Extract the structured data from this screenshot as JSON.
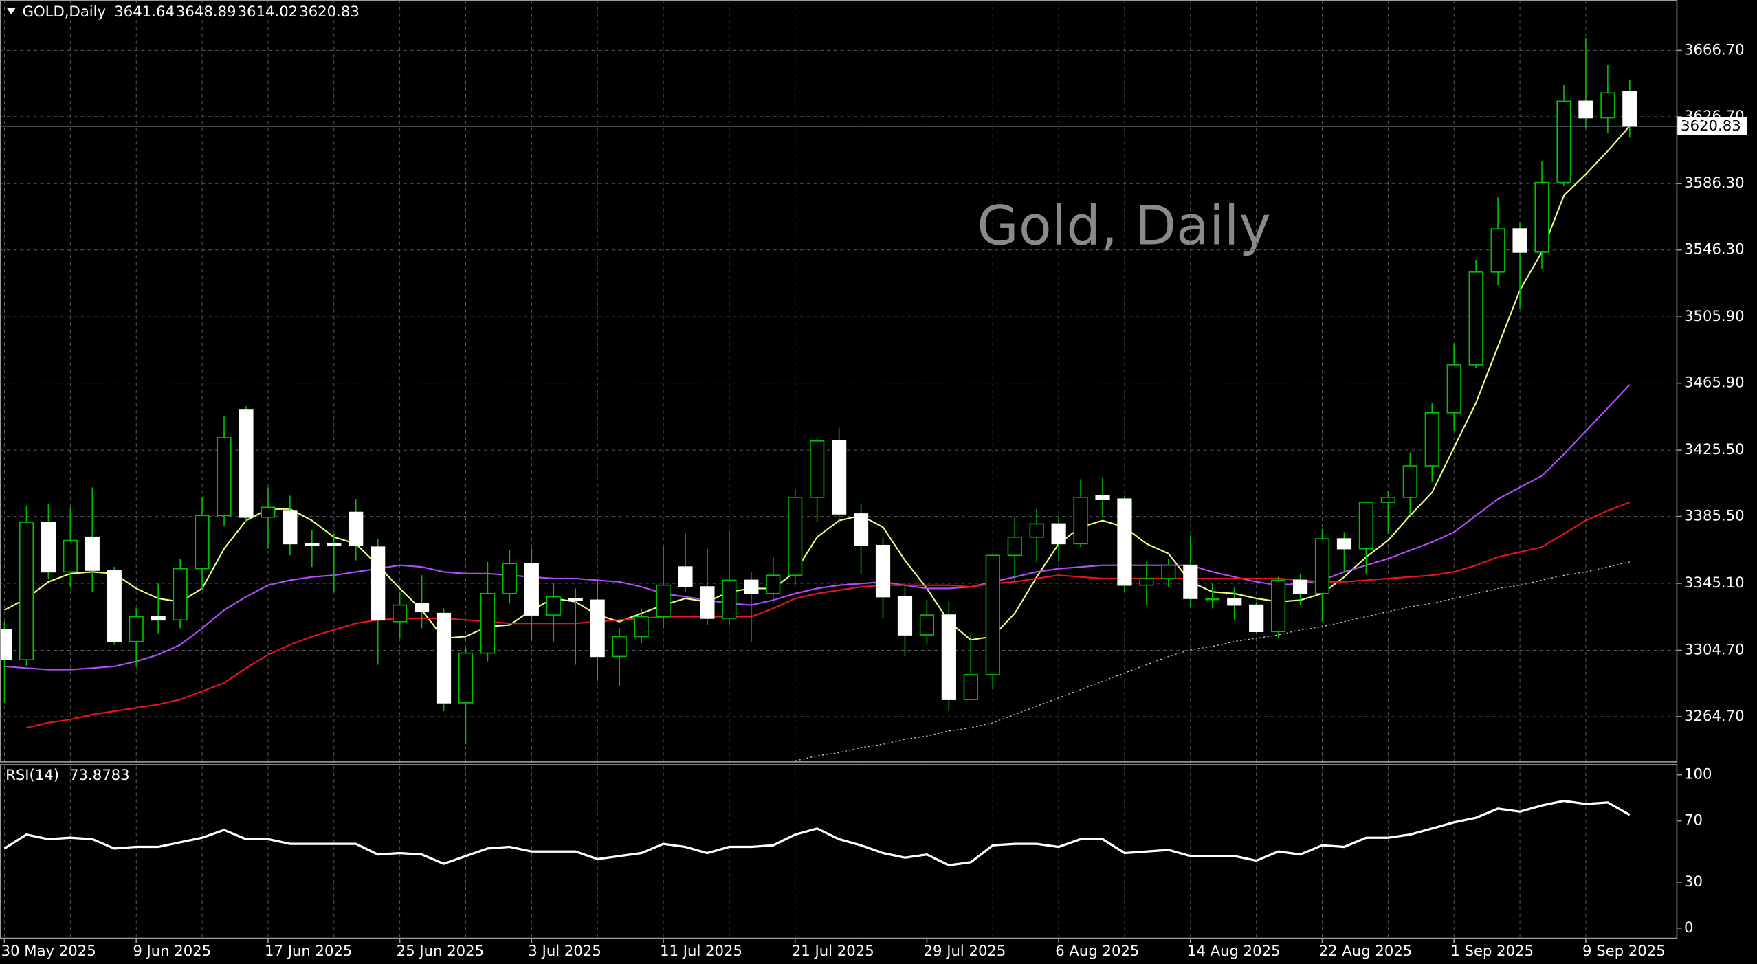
{
  "chart_data": [
    {
      "type": "candlestick",
      "title": "Gold, Daily",
      "symbol": "GOLD,Daily",
      "categories": [
        "30 May 2025",
        null,
        null,
        null,
        null,
        null,
        "9 Jun 2025",
        null,
        null,
        null,
        null,
        null,
        "17 Jun 2025",
        null,
        null,
        null,
        null,
        null,
        "25 Jun 2025",
        null,
        null,
        null,
        null,
        null,
        "3 Jul 2025",
        null,
        null,
        null,
        null,
        null,
        "11 Jul 2025",
        null,
        null,
        null,
        null,
        null,
        "21 Jul 2025",
        null,
        null,
        null,
        null,
        null,
        "29 Jul 2025",
        null,
        null,
        null,
        null,
        null,
        "6 Aug 2025",
        null,
        null,
        null,
        null,
        null,
        "14 Aug 2025",
        null,
        null,
        null,
        null,
        null,
        "22 Aug 2025",
        null,
        null,
        null,
        null,
        null,
        "1 Sep 2025",
        null,
        null,
        null,
        null,
        null,
        "9 Sep 2025",
        null,
        null
      ],
      "open": [
        3317,
        3299,
        3382,
        3352,
        3373,
        3353,
        3310,
        3325,
        3323,
        3354,
        3386,
        3450,
        3385,
        3389,
        3369,
        3369,
        3388,
        3367,
        3322,
        3333,
        3327,
        3273,
        3303,
        3339,
        3357,
        3326,
        3336,
        3335,
        3301,
        3313,
        3325,
        3355,
        3343,
        3324,
        3347,
        3339,
        3350,
        3397,
        3431,
        3387,
        3368,
        3337,
        3314,
        3326,
        3275,
        3290,
        3362,
        3373,
        3381,
        3369,
        3398,
        3396,
        3344,
        3348,
        3356,
        3336,
        3336,
        3332,
        3316,
        3347,
        3339,
        3372,
        3366,
        3394,
        3397,
        3416,
        3448,
        3477,
        3533,
        3559,
        3545,
        3587,
        3636,
        3626,
        3641.64
      ],
      "high": [
        3322,
        3392,
        3393,
        3391,
        3403,
        3355,
        3330,
        3345,
        3360,
        3397,
        3446,
        3452,
        3403,
        3398,
        3377,
        3375,
        3396,
        3372,
        3340,
        3350,
        3330,
        3306,
        3358,
        3365,
        3366,
        3345,
        3342,
        3347,
        3318,
        3330,
        3368,
        3375,
        3366,
        3377,
        3352,
        3361,
        3402,
        3433,
        3439,
        3393,
        3373,
        3345,
        3335,
        3334,
        3315,
        3363,
        3385,
        3390,
        3385,
        3408,
        3409,
        3398,
        3358,
        3360,
        3374,
        3345,
        3343,
        3334,
        3349,
        3351,
        3378,
        3376,
        3393,
        3401,
        3424,
        3454,
        3490,
        3540,
        3578,
        3563,
        3600,
        3646,
        3674,
        3658,
        3648.89
      ],
      "low": [
        3273,
        3295,
        3348,
        3343,
        3340,
        3308,
        3295,
        3315,
        3318,
        3341,
        3380,
        3382,
        3366,
        3362,
        3355,
        3340,
        3359,
        3296,
        3312,
        3318,
        3268,
        3248,
        3298,
        3333,
        3311,
        3310,
        3296,
        3287,
        3283,
        3309,
        3318,
        3340,
        3320,
        3320,
        3310,
        3333,
        3344,
        3382,
        3381,
        3351,
        3324,
        3301,
        3308,
        3268,
        3275,
        3281,
        3346,
        3358,
        3358,
        3367,
        3385,
        3340,
        3332,
        3343,
        3331,
        3330,
        3323,
        3315,
        3312,
        3332,
        3322,
        3352,
        3351,
        3375,
        3386,
        3406,
        3437,
        3475,
        3525,
        3511,
        3535,
        3585,
        3620,
        3617,
        3614.02
      ],
      "close": [
        3299,
        3382,
        3352,
        3371,
        3353,
        3310,
        3325,
        3323,
        3354,
        3386,
        3433,
        3385,
        3391,
        3369,
        3368,
        3368,
        3368,
        3323,
        3332,
        3328,
        3273,
        3303,
        3339,
        3357,
        3326,
        3337,
        3335,
        3301,
        3313,
        3325,
        3344,
        3343,
        3324,
        3347,
        3339,
        3350,
        3397,
        3431,
        3387,
        3368,
        3337,
        3314,
        3326,
        3275,
        3290,
        3362,
        3373,
        3381,
        3369,
        3397,
        3396,
        3344,
        3348,
        3356,
        3336,
        3336,
        3332,
        3316,
        3347,
        3339,
        3372,
        3366,
        3394,
        3397,
        3416,
        3448,
        3477,
        3533,
        3559,
        3545,
        3587,
        3636,
        3626,
        3641,
        3620.83
      ],
      "up_color": "#000000",
      "down_color": "#ffffff",
      "wick_color": "#00c000",
      "series": [
        {
          "color": "#eaff80",
          "values": [
            3329,
            3336,
            3346,
            3351,
            3352,
            3351,
            3342,
            3336,
            3334,
            3342,
            3366,
            3383,
            3390,
            3390,
            3383,
            3373,
            3369,
            3356,
            3342,
            3329,
            3312,
            3313,
            3319,
            3320,
            3329,
            3336,
            3334,
            3326,
            3322,
            3327,
            3332,
            3336,
            3334,
            3340,
            3342,
            3342,
            3352,
            3373,
            3383,
            3386,
            3379,
            3359,
            3342,
            3322,
            3311,
            3313,
            3327,
            3349,
            3369,
            3379,
            3383,
            3379,
            3369,
            3363,
            3346,
            3340,
            3339,
            3336,
            3334,
            3335,
            3339,
            3349,
            3361,
            3371,
            3386,
            3400,
            3427,
            3454,
            3488,
            3522,
            3545,
            3579,
            3592,
            3606,
            3621
          ]
        },
        {
          "color": "#b44cff",
          "values": [
            3295,
            3294,
            3293,
            3293,
            3294,
            3295,
            3298,
            3302,
            3308,
            3318,
            3329,
            3337,
            3344,
            3347,
            3349,
            3350,
            3352,
            3354,
            3356,
            3355,
            3352,
            3351,
            3351,
            3350,
            3349,
            3348,
            3348,
            3347,
            3346,
            3343,
            3339,
            3337,
            3335,
            3333,
            3332,
            3335,
            3339,
            3342,
            3344,
            3345,
            3346,
            3344,
            3342,
            3342,
            3343,
            3346,
            3349,
            3352,
            3354,
            3355,
            3356,
            3356,
            3356,
            3356,
            3356,
            3352,
            3349,
            3346,
            3344,
            3345,
            3347,
            3352,
            3356,
            3360,
            3365,
            3370,
            3376,
            3386,
            3396,
            3403,
            3410,
            3423,
            3437,
            3451,
            3465
          ]
        },
        {
          "color": "#e8161a",
          "values": [
            null,
            3258,
            3261,
            3263,
            3266,
            3268,
            3270,
            3272,
            3275,
            3280,
            3285,
            3294,
            3302,
            3308,
            3313,
            3317,
            3321,
            3323,
            3324,
            3324,
            3324,
            3323,
            3322,
            3321,
            3321,
            3321,
            3321,
            3322,
            3323,
            3324,
            3325,
            3325,
            3325,
            3325,
            3325,
            3330,
            3336,
            3339,
            3341,
            3343,
            3344,
            3344,
            3344,
            3344,
            3343,
            3345,
            3346,
            3348,
            3350,
            3349,
            3348,
            3348,
            3348,
            3348,
            3348,
            3348,
            3348,
            3348,
            3348,
            3347,
            3346,
            3346,
            3347,
            3348,
            3349,
            3350,
            3352,
            3356,
            3361,
            3364,
            3367,
            3375,
            3383,
            3389,
            3394
          ]
        },
        {
          "color": "#c8c8c8",
          "style": "dotted",
          "values": [
            null,
            null,
            null,
            null,
            null,
            null,
            null,
            null,
            null,
            null,
            null,
            null,
            null,
            null,
            null,
            null,
            null,
            null,
            null,
            null,
            null,
            null,
            null,
            null,
            null,
            null,
            null,
            null,
            null,
            null,
            null,
            null,
            null,
            null,
            null,
            null,
            3238,
            3241,
            3243,
            3246,
            3248,
            3251,
            3253,
            3256,
            3258,
            3261,
            3266,
            3271,
            3276,
            3281,
            3286,
            3291,
            3296,
            3301,
            3305,
            3307,
            3310,
            3312,
            3314,
            3317,
            3319,
            3322,
            3325,
            3328,
            3331,
            3333,
            3336,
            3339,
            3342,
            3344,
            3347,
            3350,
            3352,
            3355,
            3358
          ]
        }
      ],
      "ylim": [
        3237.7,
        3697.1
      ],
      "yticks": [
        {
          "value": 3264.7,
          "label": "3264.70"
        },
        {
          "value": 3304.7,
          "label": "3304.70"
        },
        {
          "value": 3345.1,
          "label": "3345.10"
        },
        {
          "value": 3385.5,
          "label": "3385.50"
        },
        {
          "value": 3425.5,
          "label": "3425.50"
        },
        {
          "value": 3465.9,
          "label": "3465.90"
        },
        {
          "value": 3505.9,
          "label": "3505.90"
        },
        {
          "value": 3546.3,
          "label": "3546.30"
        },
        {
          "value": 3586.3,
          "label": "3586.30"
        },
        {
          "value": 3626.7,
          "label": "3626.70"
        },
        {
          "value": 3666.7,
          "label": "3666.70"
        }
      ],
      "grid": true
    },
    {
      "type": "line",
      "title": "RSI(14)",
      "series": [
        {
          "color": "#ffffff",
          "values": [
            52,
            61,
            58,
            59,
            58,
            52,
            53,
            53,
            56,
            59,
            64,
            58,
            58,
            55,
            55,
            55,
            55,
            48,
            49,
            48,
            42,
            47,
            52,
            53,
            50,
            50,
            50,
            45,
            47,
            49,
            55,
            53,
            49,
            53,
            53,
            54,
            61,
            65,
            58,
            54,
            49,
            46,
            48,
            41,
            43,
            54,
            55,
            55,
            53,
            58,
            58,
            49,
            50,
            51,
            47,
            47,
            47,
            44,
            50,
            48,
            54,
            53,
            59,
            59,
            61,
            65,
            69,
            72,
            78,
            76,
            80,
            83,
            81,
            82,
            73.8783
          ]
        }
      ],
      "ylim": [
        -6.6,
        106.6
      ],
      "yticks": [
        0,
        30,
        70,
        100
      ]
    }
  ]
}
